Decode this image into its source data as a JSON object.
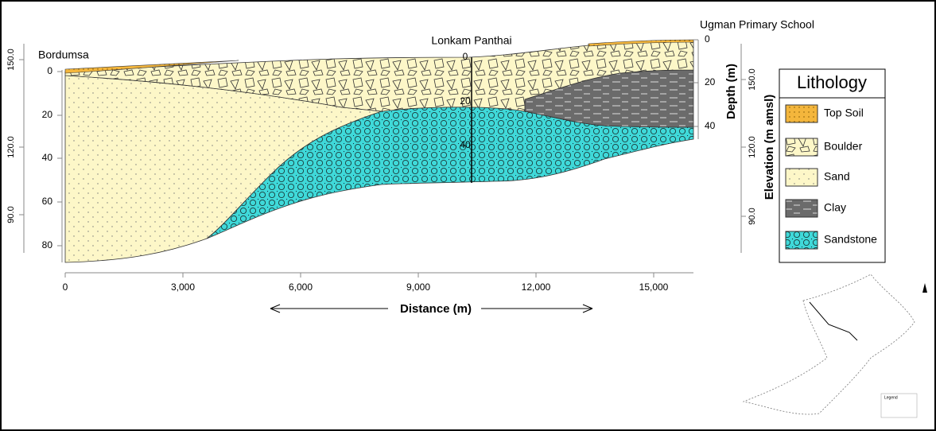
{
  "labels": {
    "left": "Bordumsa",
    "middle": "Lonkam Panthai",
    "right": "Ugman Primary School"
  },
  "left_axis": {
    "depth_ticks": [
      "0",
      "20",
      "40",
      "60",
      "80"
    ],
    "elevation_ticks": [
      "150.0",
      "120.0",
      "90.0"
    ]
  },
  "right_axis": {
    "depth_ticks": [
      "0",
      "20",
      "40"
    ],
    "depth_title": "Depth  (m)",
    "elevation_ticks": [
      "150.0",
      "120.0",
      "90.0"
    ],
    "elevation_title": "Elevation (m amsl)"
  },
  "borehole_ticks": [
    "0",
    "20",
    "40"
  ],
  "x_axis": {
    "ticks": [
      "0",
      "3,000",
      "6,000",
      "9,000",
      "12,000",
      "15,000"
    ],
    "title": "Distance (m)"
  },
  "legend": {
    "title": "Lithology",
    "items": [
      "Top Soil",
      "Boulder",
      "Sand",
      "Clay",
      "Sandstone"
    ]
  },
  "inset": {
    "legend_title": "Legend"
  }
}
